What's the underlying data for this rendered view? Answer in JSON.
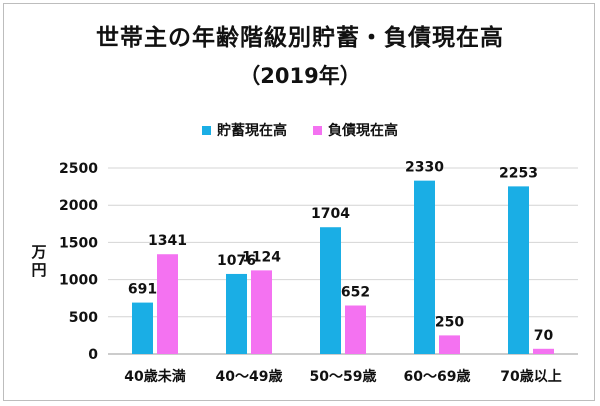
{
  "chart_data": {
    "type": "bar",
    "title": "世帯主の年齢階級別貯蓄・負債現在高",
    "subtitle": "（2019年）",
    "ylabel": "万円",
    "xlabel": "",
    "ylim": [
      0,
      2500
    ],
    "yticks": [
      0,
      500,
      1000,
      1500,
      2000,
      2500
    ],
    "grid": true,
    "legend_position": "top",
    "categories": [
      "40歳未満",
      "40～49歳",
      "50～59歳",
      "60～69歳",
      "70歳以上"
    ],
    "series": [
      {
        "name": "貯蓄現在高",
        "color": "#1aaee5",
        "values": [
          691,
          1076,
          1704,
          2330,
          2253
        ]
      },
      {
        "name": "負債現在高",
        "color": "#f472f1",
        "values": [
          1341,
          1124,
          652,
          250,
          70
        ]
      }
    ]
  }
}
